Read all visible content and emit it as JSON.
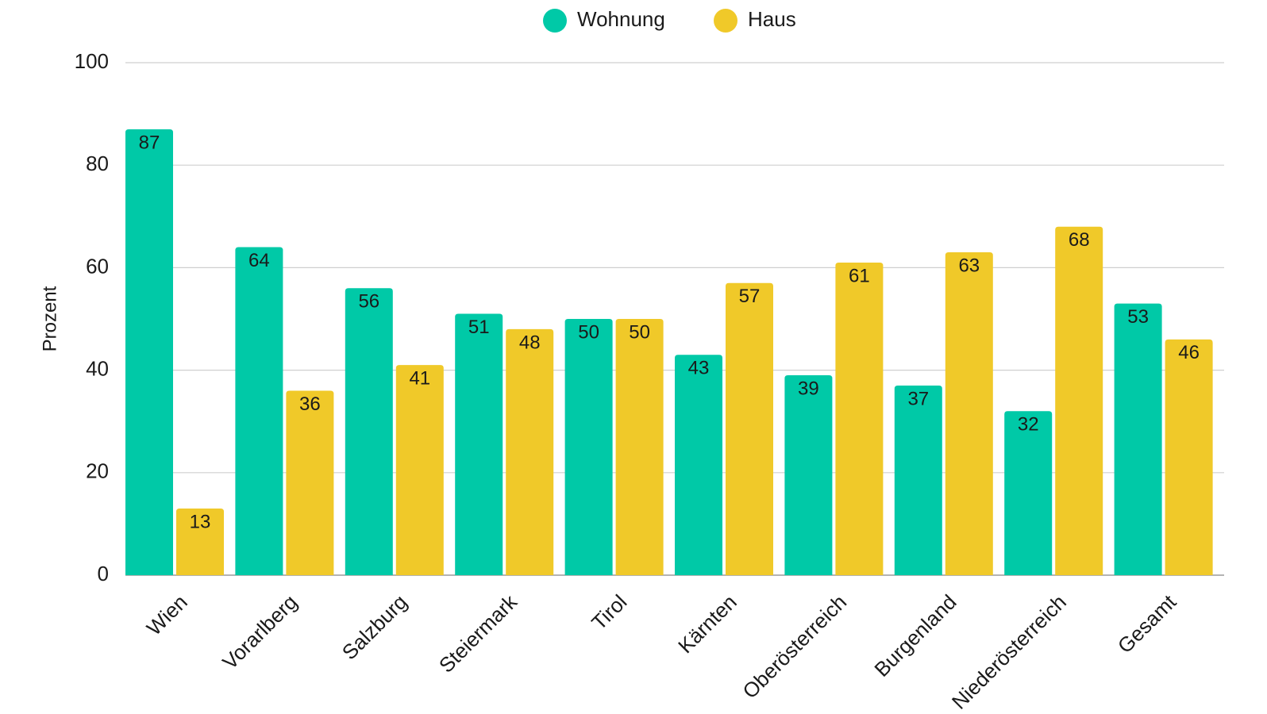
{
  "chart_data": {
    "type": "bar",
    "categories": [
      "Wien",
      "Vorarlberg",
      "Salzburg",
      "Steiermark",
      "Tirol",
      "Kärnten",
      "Oberösterreich",
      "Burgenland",
      "Niederösterreich",
      "Gesamt"
    ],
    "series": [
      {
        "name": "Wohnung",
        "color": "#00c9a7",
        "values": [
          87,
          64,
          56,
          51,
          50,
          43,
          39,
          37,
          32,
          53
        ]
      },
      {
        "name": "Haus",
        "color": "#f0c929",
        "values": [
          13,
          36,
          41,
          48,
          50,
          57,
          61,
          63,
          68,
          46
        ]
      }
    ],
    "ylabel": "Prozent",
    "ylim": [
      0,
      100
    ],
    "yticks": [
      0,
      20,
      40,
      60,
      80,
      100
    ],
    "grid": true,
    "legend_position": "top-center",
    "data_labels": true,
    "x_label_rotation": "45deg"
  }
}
